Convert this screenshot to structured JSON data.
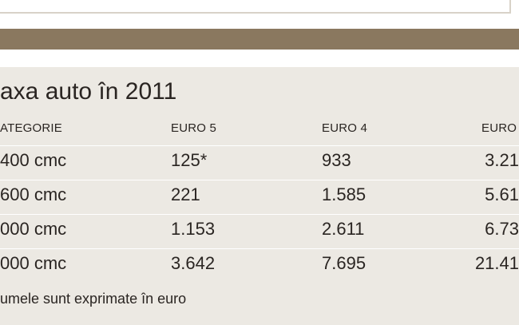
{
  "title": "axa auto în 2011",
  "table": {
    "headers": [
      "ATEGORIE",
      "EURO 5",
      "EURO 4",
      "EURO"
    ],
    "rows": [
      [
        "400 cmc",
        "125*",
        "933",
        "3.21"
      ],
      [
        "600 cmc",
        "221",
        "1.585",
        "5.61"
      ],
      [
        "000 cmc",
        "1.153",
        "2.611",
        "6.73"
      ],
      [
        "000 cmc",
        "3.642",
        "7.695",
        "21.41"
      ]
    ]
  },
  "footnote": "umele sunt exprimate în euro",
  "colors": {
    "band": "#8a785f",
    "panel": "#ece9e3",
    "text": "#2a2522"
  }
}
